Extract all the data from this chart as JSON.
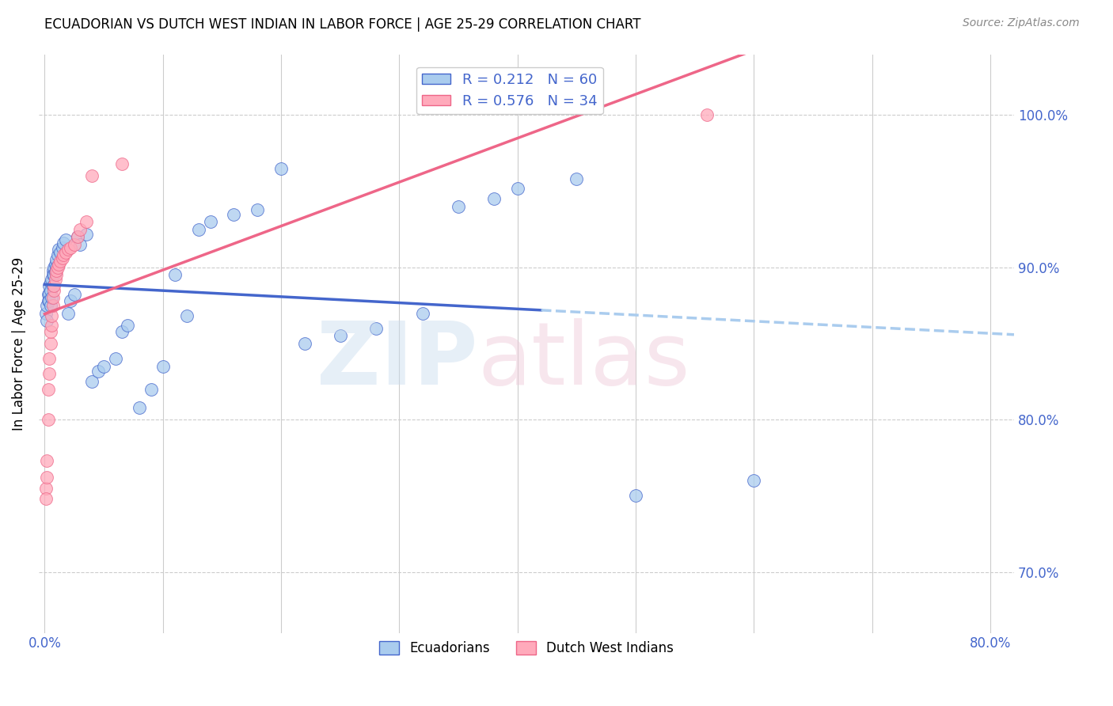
{
  "title": "ECUADORIAN VS DUTCH WEST INDIAN IN LABOR FORCE | AGE 25-29 CORRELATION CHART",
  "source": "Source: ZipAtlas.com",
  "ylabel": "In Labor Force | Age 25-29",
  "R_blue": 0.212,
  "N_blue": 60,
  "R_pink": 0.576,
  "N_pink": 34,
  "blue_color": "#AACCEE",
  "pink_color": "#FFAABB",
  "trend_blue_solid": "#4466CC",
  "trend_pink_solid": "#EE6688",
  "trend_blue_dashed": "#AACCEE",
  "blue_scatter_x": [
    0.001,
    0.002,
    0.002,
    0.003,
    0.003,
    0.004,
    0.004,
    0.004,
    0.005,
    0.005,
    0.005,
    0.006,
    0.006,
    0.007,
    0.007,
    0.007,
    0.008,
    0.008,
    0.009,
    0.009,
    0.01,
    0.01,
    0.011,
    0.012,
    0.013,
    0.015,
    0.016,
    0.018,
    0.02,
    0.022,
    0.025,
    0.028,
    0.03,
    0.035,
    0.04,
    0.045,
    0.05,
    0.06,
    0.065,
    0.07,
    0.08,
    0.09,
    0.1,
    0.11,
    0.12,
    0.13,
    0.14,
    0.16,
    0.18,
    0.2,
    0.22,
    0.25,
    0.28,
    0.32,
    0.35,
    0.38,
    0.4,
    0.45,
    0.5,
    0.6
  ],
  "blue_scatter_y": [
    0.87,
    0.875,
    0.865,
    0.882,
    0.878,
    0.888,
    0.883,
    0.878,
    0.89,
    0.885,
    0.875,
    0.892,
    0.88,
    0.898,
    0.895,
    0.888,
    0.9,
    0.895,
    0.902,
    0.897,
    0.905,
    0.9,
    0.908,
    0.912,
    0.91,
    0.913,
    0.916,
    0.918,
    0.87,
    0.878,
    0.882,
    0.92,
    0.915,
    0.922,
    0.825,
    0.832,
    0.835,
    0.84,
    0.858,
    0.862,
    0.808,
    0.82,
    0.835,
    0.895,
    0.868,
    0.925,
    0.93,
    0.935,
    0.938,
    0.965,
    0.85,
    0.855,
    0.86,
    0.87,
    0.94,
    0.945,
    0.952,
    0.958,
    0.75,
    0.76
  ],
  "pink_scatter_x": [
    0.001,
    0.001,
    0.002,
    0.002,
    0.003,
    0.003,
    0.004,
    0.004,
    0.005,
    0.005,
    0.006,
    0.006,
    0.007,
    0.007,
    0.008,
    0.008,
    0.009,
    0.01,
    0.01,
    0.011,
    0.012,
    0.013,
    0.015,
    0.016,
    0.018,
    0.02,
    0.022,
    0.025,
    0.028,
    0.03,
    0.035,
    0.04,
    0.065,
    0.56
  ],
  "pink_scatter_y": [
    0.755,
    0.748,
    0.762,
    0.773,
    0.8,
    0.82,
    0.83,
    0.84,
    0.85,
    0.858,
    0.862,
    0.868,
    0.875,
    0.88,
    0.885,
    0.888,
    0.892,
    0.895,
    0.898,
    0.9,
    0.902,
    0.904,
    0.906,
    0.908,
    0.91,
    0.912,
    0.913,
    0.915,
    0.92,
    0.925,
    0.93,
    0.96,
    0.968,
    1.0
  ],
  "xlim": [
    -0.005,
    0.82
  ],
  "ylim": [
    0.66,
    1.04
  ],
  "yticks": [
    0.7,
    0.8,
    0.9,
    1.0
  ],
  "xticks_positions": [
    0.0,
    0.1,
    0.2,
    0.3,
    0.4,
    0.5,
    0.6,
    0.7,
    0.8
  ],
  "xtick_labels_show": [
    "0.0%",
    "",
    "",
    "",
    "",
    "",
    "",
    "",
    "80.0%"
  ],
  "trend_blue_solid_xrange": [
    0.0,
    0.42
  ],
  "trend_blue_dashed_xrange": [
    0.42,
    0.82
  ],
  "trend_pink_xrange": [
    0.0,
    0.6
  ]
}
